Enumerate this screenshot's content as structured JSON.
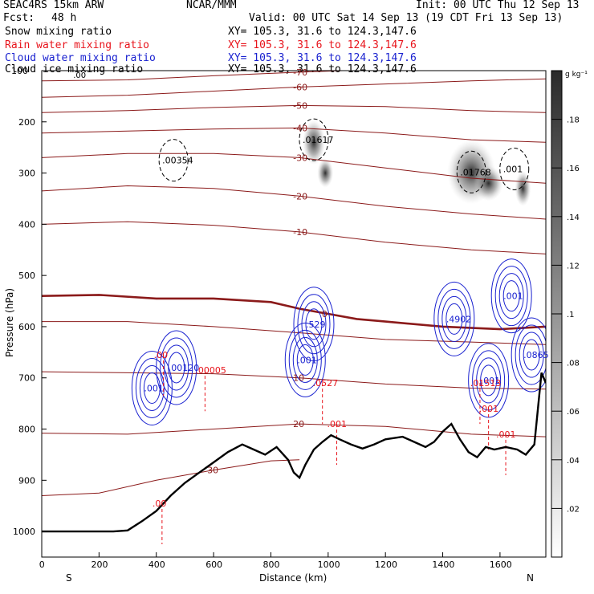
{
  "header": {
    "model": "SEAC4RS 15km ARW",
    "center": "NCAR/MMM",
    "init": "Init: 00 UTC Thu 12 Sep 13",
    "fcst_label": "Fcst:",
    "fcst_value": "48 h",
    "valid": "Valid: 00 UTC Sat 14 Sep 13 (19 CDT Fri 13 Sep 13)"
  },
  "fields": [
    {
      "name": "Snow mixing ratio",
      "xy": "XY= 105.3, 31.6 to 124.3,147.6",
      "color": "#000000"
    },
    {
      "name": "Rain water mixing ratio",
      "xy": "XY= 105.3, 31.6 to 124.3,147.6",
      "color": "#e8141c"
    },
    {
      "name": "Cloud water mixing ratio",
      "xy": "XY= 105.3, 31.6 to 124.3,147.6",
      "color": "#1a22d0"
    },
    {
      "name": "Cloud ice mixing ratio",
      "xy": "XY= 105.3, 31.6 to 124.3,147.6",
      "color": "#000000"
    }
  ],
  "colors": {
    "temperature": "#8b1a1a",
    "freezing": "#8b1a1a",
    "rain": "#e8141c",
    "cloud_water": "#1a22d0",
    "terrain": "#000000",
    "snow_shade": "#333333"
  },
  "chart_data": {
    "type": "heatmap",
    "xlabel": "Distance (km)",
    "ylabel": "Pressure (hPa)",
    "x_ticks": [
      "0",
      "200",
      "400",
      "600",
      "800",
      "1000",
      "1200",
      "1400",
      "1600"
    ],
    "y_ticks": [
      "200",
      "300",
      "400",
      "500",
      "600",
      "700",
      "800",
      "900",
      "1000"
    ],
    "y_top_label": "100",
    "xlim": [
      0,
      1760
    ],
    "ylim": [
      1050,
      100
    ],
    "direction_left": "S",
    "direction_right": "N",
    "colorbar": {
      "unit": "g kg⁻¹",
      "ticks": [
        ".02",
        ".04",
        ".06",
        ".08",
        ".1",
        ".12",
        ".14",
        ".16",
        ".18"
      ],
      "range": [
        0,
        0.2
      ]
    },
    "temperature_contours": [
      {
        "label": "-70",
        "points": [
          [
            0,
            120
          ],
          [
            300,
            118
          ],
          [
            600,
            110
          ],
          [
            900,
            103
          ],
          [
            1200,
            97
          ],
          [
            1500,
            92
          ],
          [
            1760,
            88
          ]
        ]
      },
      {
        "label": "-60",
        "points": [
          [
            0,
            152
          ],
          [
            300,
            148
          ],
          [
            600,
            140
          ],
          [
            900,
            132
          ],
          [
            1200,
            126
          ],
          [
            1500,
            120
          ],
          [
            1760,
            116
          ]
        ]
      },
      {
        "label": "-50",
        "points": [
          [
            0,
            182
          ],
          [
            300,
            178
          ],
          [
            600,
            172
          ],
          [
            900,
            168
          ],
          [
            1200,
            170
          ],
          [
            1500,
            178
          ],
          [
            1760,
            182
          ]
        ]
      },
      {
        "label": "-40",
        "points": [
          [
            0,
            222
          ],
          [
            300,
            218
          ],
          [
            600,
            214
          ],
          [
            900,
            212
          ],
          [
            1200,
            222
          ],
          [
            1500,
            235
          ],
          [
            1760,
            240
          ]
        ]
      },
      {
        "label": "-30",
        "points": [
          [
            0,
            270
          ],
          [
            300,
            262
          ],
          [
            600,
            262
          ],
          [
            900,
            270
          ],
          [
            1200,
            290
          ],
          [
            1500,
            310
          ],
          [
            1760,
            320
          ]
        ]
      },
      {
        "label": "-20",
        "points": [
          [
            0,
            335
          ],
          [
            300,
            325
          ],
          [
            600,
            330
          ],
          [
            900,
            345
          ],
          [
            1200,
            365
          ],
          [
            1500,
            380
          ],
          [
            1760,
            390
          ]
        ]
      },
      {
        "label": "-10",
        "points": [
          [
            0,
            400
          ],
          [
            300,
            395
          ],
          [
            600,
            402
          ],
          [
            900,
            415
          ],
          [
            1200,
            435
          ],
          [
            1500,
            450
          ],
          [
            1760,
            458
          ]
        ]
      },
      {
        "label": "0",
        "points": [
          [
            0,
            540
          ],
          [
            200,
            538
          ],
          [
            400,
            545
          ],
          [
            600,
            545
          ],
          [
            800,
            552
          ],
          [
            900,
            565
          ],
          [
            1000,
            575
          ],
          [
            1100,
            585
          ],
          [
            1200,
            590
          ],
          [
            1400,
            600
          ],
          [
            1600,
            605
          ],
          [
            1760,
            600
          ]
        ]
      },
      {
        "label": "",
        "points": [
          [
            0,
            590
          ],
          [
            300,
            590
          ],
          [
            600,
            600
          ],
          [
            900,
            612
          ],
          [
            1200,
            625
          ],
          [
            1500,
            630
          ],
          [
            1760,
            635
          ]
        ]
      },
      {
        "label": "10",
        "points": [
          [
            0,
            688
          ],
          [
            300,
            690
          ],
          [
            600,
            692
          ],
          [
            900,
            700
          ],
          [
            1200,
            712
          ],
          [
            1500,
            720
          ],
          [
            1760,
            722
          ]
        ]
      },
      {
        "label": "20",
        "points": [
          [
            0,
            808
          ],
          [
            300,
            810
          ],
          [
            600,
            800
          ],
          [
            900,
            790
          ],
          [
            1200,
            795
          ],
          [
            1500,
            810
          ],
          [
            1760,
            815
          ]
        ]
      },
      {
        "label": "30",
        "points": [
          [
            0,
            930
          ],
          [
            200,
            925
          ],
          [
            400,
            900
          ],
          [
            600,
            880
          ],
          [
            800,
            862
          ],
          [
            900,
            860
          ]
        ]
      }
    ],
    "terrain": [
      [
        0,
        1000
      ],
      [
        250,
        1000
      ],
      [
        300,
        998
      ],
      [
        350,
        980
      ],
      [
        400,
        960
      ],
      [
        450,
        930
      ],
      [
        500,
        905
      ],
      [
        550,
        885
      ],
      [
        600,
        865
      ],
      [
        650,
        845
      ],
      [
        700,
        830
      ],
      [
        740,
        840
      ],
      [
        780,
        850
      ],
      [
        820,
        835
      ],
      [
        860,
        860
      ],
      [
        880,
        885
      ],
      [
        900,
        895
      ],
      [
        920,
        870
      ],
      [
        950,
        840
      ],
      [
        980,
        825
      ],
      [
        1010,
        812
      ],
      [
        1040,
        820
      ],
      [
        1080,
        830
      ],
      [
        1120,
        838
      ],
      [
        1160,
        830
      ],
      [
        1200,
        820
      ],
      [
        1260,
        815
      ],
      [
        1300,
        825
      ],
      [
        1340,
        835
      ],
      [
        1370,
        825
      ],
      [
        1400,
        805
      ],
      [
        1430,
        790
      ],
      [
        1460,
        820
      ],
      [
        1490,
        845
      ],
      [
        1520,
        855
      ],
      [
        1550,
        835
      ],
      [
        1580,
        840
      ],
      [
        1620,
        835
      ],
      [
        1660,
        840
      ],
      [
        1690,
        850
      ],
      [
        1720,
        830
      ],
      [
        1745,
        690
      ],
      [
        1760,
        710
      ]
    ],
    "cloud_water_max": [
      {
        "label": ".001",
        "x": 385,
        "p": 720
      },
      {
        "label": ".00120",
        "x": 470,
        "p": 680
      },
      {
        "label": ".001",
        "x": 920,
        "p": 665
      },
      {
        "label": ".529",
        "x": 950,
        "p": 595
      },
      {
        "label": ".4902",
        "x": 1440,
        "p": 585
      },
      {
        "label": ".001",
        "x": 1560,
        "p": 705
      },
      {
        "label": ".001",
        "x": 1640,
        "p": 540
      },
      {
        "label": ".0865",
        "x": 1710,
        "p": 655
      }
    ],
    "rain_max": [
      {
        "label": ".00",
        "x": 425,
        "p": 655
      },
      {
        "label": ".00005",
        "x": 570,
        "p": 685
      },
      {
        "label": ".0527",
        "x": 980,
        "p": 710
      },
      {
        "label": ".001",
        "x": 1030,
        "p": 790
      },
      {
        "label": ".01513",
        "x": 1530,
        "p": 710
      },
      {
        "label": ".001",
        "x": 1560,
        "p": 760
      },
      {
        "label": ".001",
        "x": 1620,
        "p": 810
      },
      {
        "label": ".00",
        "x": 420,
        "p": 945
      }
    ],
    "ice_max": [
      {
        "label": ".00354",
        "x": 460,
        "p": 275
      },
      {
        "label": ".01617",
        "x": 950,
        "p": 235
      },
      {
        "label": ".01768",
        "x": 1500,
        "p": 298
      },
      {
        "label": ".001",
        "x": 1650,
        "p": 292
      }
    ],
    "top_labels": [
      {
        "label": ".00",
        "x": 110,
        "p": 108
      }
    ]
  }
}
